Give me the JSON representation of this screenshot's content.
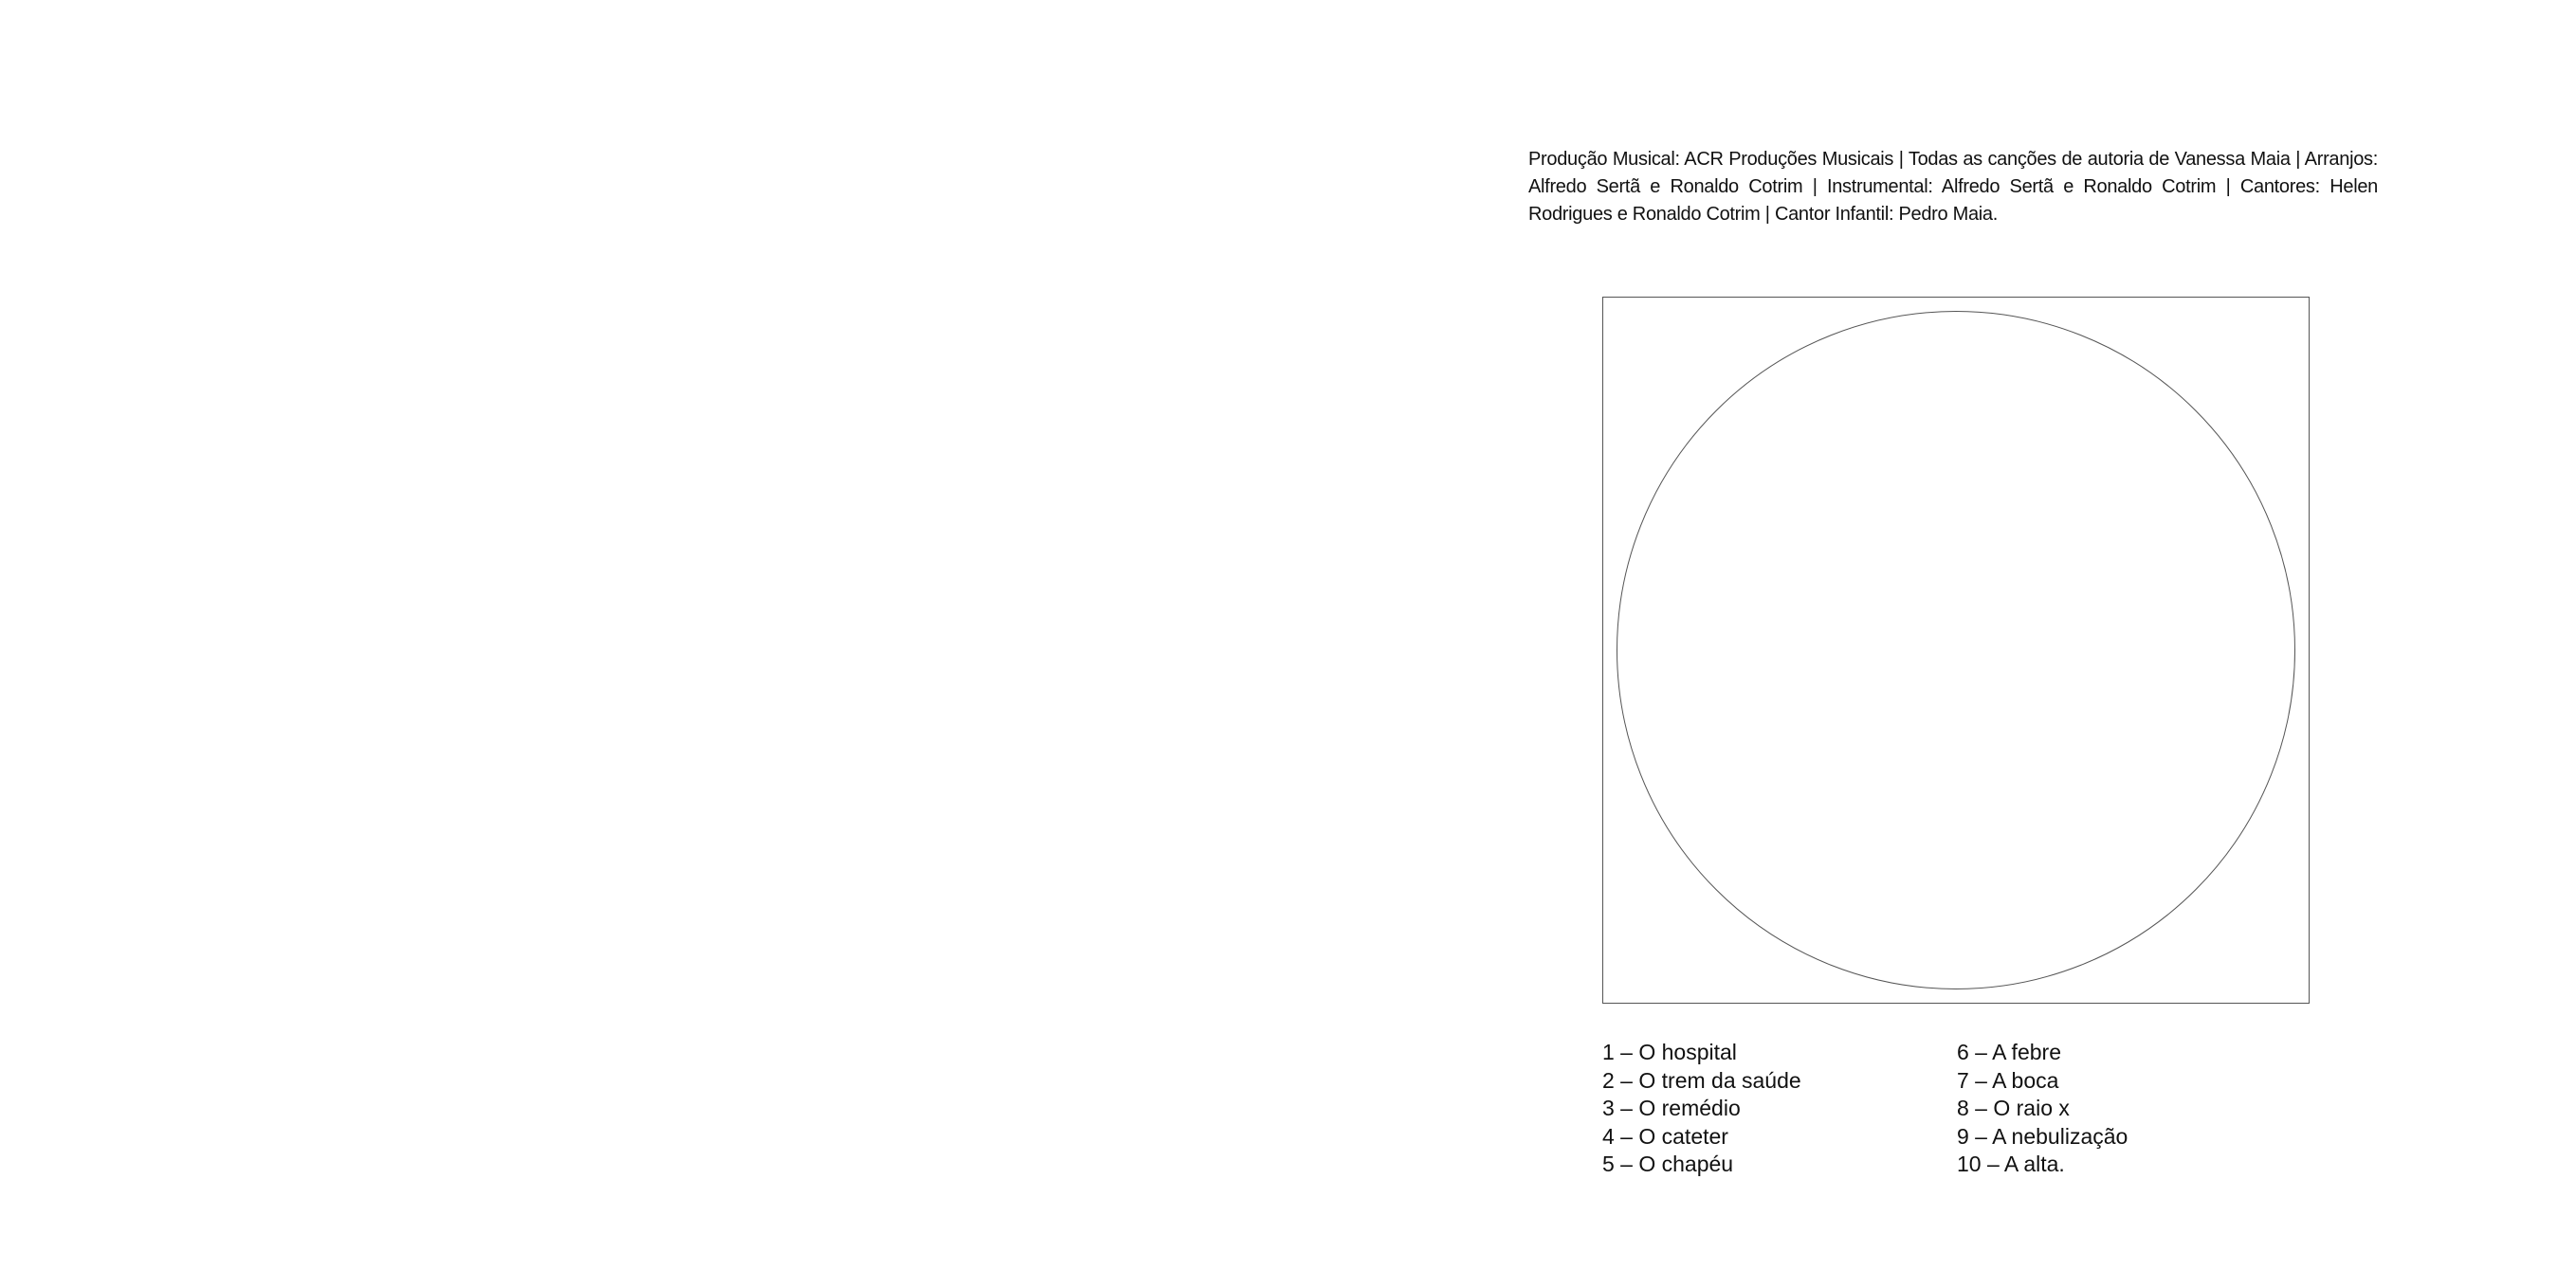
{
  "credits": {
    "text": "Produção Musical: ACR Produções Musicais | Todas as canções de autoria de Vanessa Maia | Arranjos: Alfredo Sertã e Ronaldo Cotrim | Instrumental: Alfredo Sertã e Ronaldo Cotrim | Cantores: Helen Rodrigues e Ronaldo Cotrim | Cantor Infantil: Pedro Maia."
  },
  "tracks": {
    "left": [
      "1 – O hospital",
      "2 – O trem da saúde",
      "3 – O remédio",
      "4 – O cateter",
      "5 – O chapéu"
    ],
    "right": [
      "6 – A febre",
      "7 – A boca",
      "8 – O raio x",
      "9 – A nebulização",
      "10 – A alta."
    ]
  }
}
